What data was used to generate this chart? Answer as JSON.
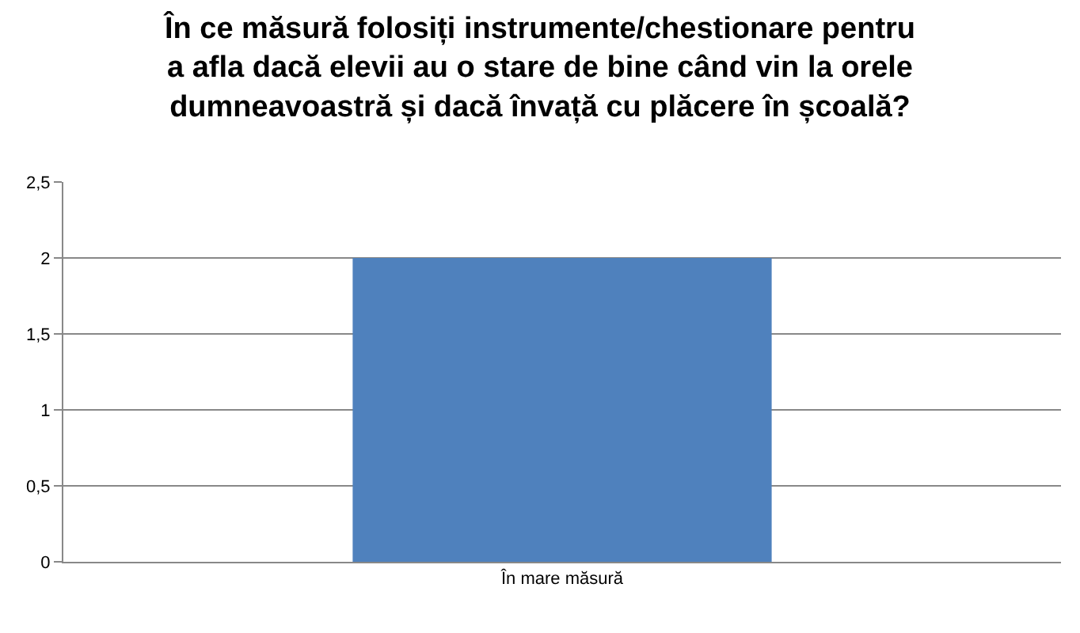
{
  "chart_data": {
    "type": "bar",
    "title": "În ce măsură folosiți instrumente/chestionare pentru\na afla dacă elevii au o stare de bine când vin la orele\ndumneavoastră și dacă învață cu plăcere în școală?",
    "categories": [
      "În mare măsură"
    ],
    "values": [
      2
    ],
    "color": "#4f81bd",
    "ylim": [
      0,
      2.5
    ],
    "yticks": [
      0,
      {
        "value": 0.5,
        "label": "0,5"
      },
      1,
      {
        "value": 1.5,
        "label": "1,5"
      },
      2,
      {
        "value": 2.5,
        "label": "2,5"
      }
    ],
    "grid": "y"
  }
}
